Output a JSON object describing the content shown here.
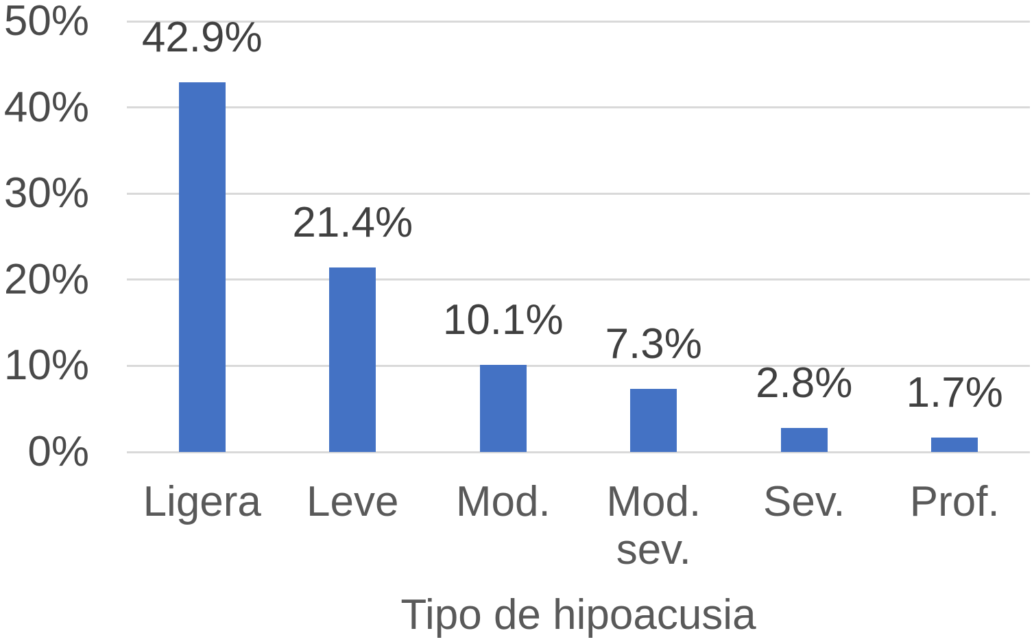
{
  "chart_data": {
    "type": "bar",
    "title": "",
    "xlabel": "Tipo de hipoacusia",
    "ylabel": "",
    "categories": [
      "Ligera",
      "Leve",
      "Mod.",
      "Mod. sev.",
      "Sev.",
      "Prof."
    ],
    "values": [
      42.9,
      21.4,
      10.1,
      7.3,
      2.8,
      1.7
    ],
    "value_labels": [
      "42.9%",
      "21.4%",
      "10.1%",
      "7.3%",
      "2.8%",
      "1.7%"
    ],
    "y_tick_values": [
      0,
      10,
      20,
      30,
      40,
      50
    ],
    "y_tick_labels": [
      "0%",
      "10%",
      "20%",
      "30%",
      "40%",
      "50%"
    ],
    "ylim": [
      0,
      50
    ],
    "grid": true,
    "legend": "none",
    "colors": {
      "bar": "#4472C4",
      "gridline": "#D9D9D9",
      "tick_text": "#4A4A4A",
      "data_label_text": "#404040",
      "category_text": "#595959",
      "axis_title_text": "#595959",
      "background": "#FFFFFF"
    }
  }
}
